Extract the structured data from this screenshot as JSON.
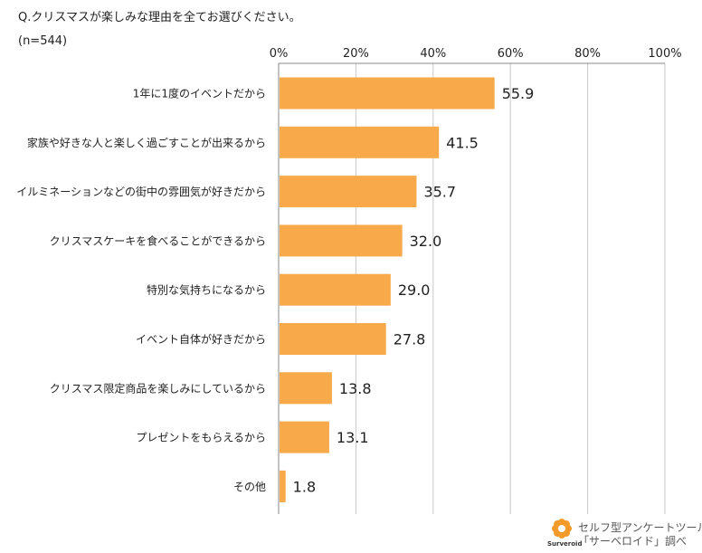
{
  "question": "Q.クリスマスが楽しみな理由を全てお選びください。",
  "sample_size": "(n=544)",
  "chart_data": {
    "type": "bar",
    "orientation": "horizontal",
    "title": "Q.クリスマスが楽しみな理由を全てお選びください。",
    "xlim": [
      0,
      100
    ],
    "ticks": [
      "0%",
      "20%",
      "40%",
      "60%",
      "80%",
      "100%"
    ],
    "tick_values": [
      0,
      20,
      40,
      60,
      80,
      100
    ],
    "categories": [
      "1年に1度のイベントだから",
      "家族や好きな人と楽しく過ごすことが出来るから",
      "イルミネーションなどの街中の雰囲気が好きだから",
      "クリスマスケーキを食べることができるから",
      "特別な気持ちになるから",
      "イベント自体が好きだから",
      "クリスマス限定商品を楽しみにしているから",
      "プレゼントをもらえるから",
      "その他"
    ],
    "values": [
      55.9,
      41.5,
      35.7,
      32.0,
      29.0,
      27.8,
      13.8,
      13.1,
      1.8
    ],
    "value_labels": [
      "55.9",
      "41.5",
      "35.7",
      "32.0",
      "29.0",
      "27.8",
      "13.8",
      "13.1",
      "1.8"
    ],
    "bar_color": "#F8A94A",
    "grid": true
  },
  "footer": {
    "logo_text": "Surveroid",
    "line1": "セルフ型アンケートツール",
    "line2": "「サーベロイド」調べ",
    "logo_color": "#F39A2B"
  }
}
